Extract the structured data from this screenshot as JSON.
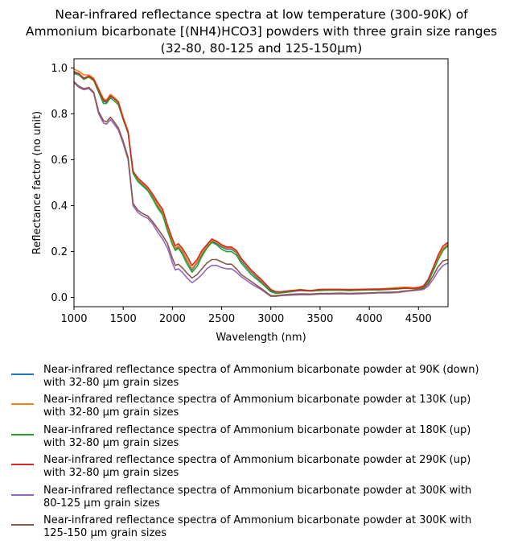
{
  "chart_data": {
    "type": "line",
    "title": "Near-infrared reflectance spectra at low temperature (300-90K) of\nAmmonium bicarbonate [(NH4)HCO3] powders with three grain size ranges\n(32-80, 80-125 and 125-150µm)",
    "xlabel": "Wavelength (nm)",
    "ylabel": "Reflectance factor (no unit)",
    "xlim": [
      1000,
      4800
    ],
    "ylim": [
      -0.04,
      1.04
    ],
    "xticks": [
      "1000",
      "1500",
      "2000",
      "2500",
      "3000",
      "3500",
      "4000",
      "4500"
    ],
    "yticks": [
      "0.0",
      "0.2",
      "0.4",
      "0.6",
      "0.8",
      "1.0"
    ],
    "grid": false,
    "legend_position": "below",
    "series": [
      {
        "name": "Near-infrared reflectance spectra of Ammonium bicarbonate powder at 90K (down)\nwith 32-80 µm grain sizes",
        "color": "#1f77b4",
        "x": [
          1000,
          1050,
          1100,
          1150,
          1200,
          1250,
          1300,
          1330,
          1370,
          1400,
          1450,
          1500,
          1550,
          1600,
          1650,
          1700,
          1750,
          1800,
          1850,
          1900,
          1950,
          2000,
          2030,
          2060,
          2100,
          2150,
          2200,
          2250,
          2300,
          2350,
          2400,
          2450,
          2500,
          2550,
          2600,
          2650,
          2700,
          2800,
          2900,
          3000,
          3050,
          3100,
          3200,
          3300,
          3400,
          3500,
          3600,
          3700,
          3800,
          3900,
          4000,
          4100,
          4200,
          4300,
          4350,
          4400,
          4450,
          4500,
          4550,
          4600,
          4650,
          4700,
          4750,
          4800
        ],
        "y": [
          0.985,
          0.975,
          0.955,
          0.965,
          0.95,
          0.9,
          0.855,
          0.85,
          0.875,
          0.87,
          0.85,
          0.78,
          0.72,
          0.545,
          0.51,
          0.49,
          0.47,
          0.44,
          0.4,
          0.37,
          0.3,
          0.24,
          0.21,
          0.22,
          0.2,
          0.16,
          0.12,
          0.15,
          0.19,
          0.22,
          0.245,
          0.235,
          0.22,
          0.21,
          0.21,
          0.195,
          0.16,
          0.11,
          0.07,
          0.03,
          0.02,
          0.02,
          0.025,
          0.03,
          0.028,
          0.03,
          0.032,
          0.032,
          0.03,
          0.032,
          0.033,
          0.033,
          0.035,
          0.038,
          0.04,
          0.045,
          0.04,
          0.042,
          0.045,
          0.07,
          0.12,
          0.17,
          0.21,
          0.23
        ]
      },
      {
        "name": "Near-infrared reflectance spectra of Ammonium bicarbonate powder at 130K (up)\nwith 32-80 µm grain sizes",
        "color": "#ff7f0e",
        "x": [
          1000,
          1050,
          1100,
          1150,
          1200,
          1250,
          1300,
          1330,
          1370,
          1400,
          1450,
          1500,
          1550,
          1600,
          1650,
          1700,
          1750,
          1800,
          1850,
          1900,
          1950,
          2000,
          2030,
          2060,
          2100,
          2150,
          2200,
          2250,
          2300,
          2350,
          2400,
          2450,
          2500,
          2550,
          2600,
          2650,
          2700,
          2800,
          2900,
          3000,
          3050,
          3100,
          3200,
          3300,
          3400,
          3500,
          3600,
          3700,
          3800,
          3900,
          4000,
          4100,
          4200,
          4300,
          4350,
          4400,
          4450,
          4500,
          4550,
          4600,
          4650,
          4700,
          4750,
          4800
        ],
        "y": [
          0.995,
          0.985,
          0.97,
          0.97,
          0.955,
          0.91,
          0.865,
          0.86,
          0.885,
          0.875,
          0.855,
          0.785,
          0.725,
          0.55,
          0.515,
          0.495,
          0.475,
          0.445,
          0.405,
          0.375,
          0.305,
          0.245,
          0.215,
          0.225,
          0.205,
          0.165,
          0.125,
          0.155,
          0.195,
          0.225,
          0.25,
          0.24,
          0.225,
          0.215,
          0.215,
          0.2,
          0.165,
          0.115,
          0.075,
          0.035,
          0.025,
          0.025,
          0.03,
          0.035,
          0.03,
          0.035,
          0.036,
          0.036,
          0.035,
          0.036,
          0.037,
          0.038,
          0.04,
          0.043,
          0.045,
          0.045,
          0.042,
          0.045,
          0.05,
          0.075,
          0.125,
          0.175,
          0.215,
          0.235
        ]
      },
      {
        "name": "Near-infrared reflectance spectra of Ammonium bicarbonate powder at 180K (up)\nwith 32-80 µm grain sizes",
        "color": "#2ca02c",
        "x": [
          1000,
          1050,
          1100,
          1150,
          1200,
          1250,
          1300,
          1330,
          1370,
          1400,
          1450,
          1500,
          1550,
          1600,
          1650,
          1700,
          1750,
          1800,
          1850,
          1900,
          1950,
          2000,
          2030,
          2060,
          2100,
          2150,
          2200,
          2250,
          2300,
          2350,
          2400,
          2450,
          2500,
          2550,
          2600,
          2650,
          2700,
          2800,
          2900,
          3000,
          3050,
          3100,
          3200,
          3250,
          3300,
          3350,
          3400,
          3500,
          3600,
          3700,
          3800,
          3900,
          4000,
          4100,
          4200,
          4300,
          4350,
          4400,
          4450,
          4500,
          4550,
          4600,
          4650,
          4700,
          4750,
          4800
        ],
        "y": [
          0.975,
          0.97,
          0.95,
          0.96,
          0.945,
          0.895,
          0.845,
          0.845,
          0.87,
          0.86,
          0.84,
          0.775,
          0.715,
          0.54,
          0.505,
          0.485,
          0.465,
          0.43,
          0.39,
          0.36,
          0.29,
          0.23,
          0.205,
          0.215,
          0.19,
          0.145,
          0.11,
          0.135,
          0.18,
          0.215,
          0.24,
          0.23,
          0.21,
          0.2,
          0.2,
          0.185,
          0.15,
          0.1,
          0.065,
          0.025,
          0.018,
          0.02,
          0.025,
          0.03,
          0.035,
          0.03,
          0.028,
          0.03,
          0.032,
          0.032,
          0.03,
          0.032,
          0.033,
          0.034,
          0.035,
          0.038,
          0.04,
          0.04,
          0.038,
          0.04,
          0.045,
          0.07,
          0.115,
          0.165,
          0.205,
          0.225
        ]
      },
      {
        "name": "Near-infrared reflectance spectra of Ammonium bicarbonate powder at 290K (up)\nwith 32-80 µm grain sizes",
        "color": "#d62728",
        "x": [
          1000,
          1050,
          1100,
          1150,
          1200,
          1250,
          1300,
          1330,
          1370,
          1400,
          1450,
          1500,
          1550,
          1600,
          1650,
          1700,
          1750,
          1800,
          1850,
          1900,
          1950,
          2000,
          2030,
          2060,
          2100,
          2150,
          2200,
          2250,
          2300,
          2350,
          2400,
          2450,
          2500,
          2550,
          2600,
          2650,
          2700,
          2800,
          2900,
          3000,
          3050,
          3100,
          3200,
          3300,
          3400,
          3500,
          3600,
          3700,
          3800,
          3900,
          4000,
          4100,
          4200,
          4300,
          4350,
          4400,
          4450,
          4500,
          4550,
          4600,
          4650,
          4700,
          4750,
          4800
        ],
        "y": [
          0.98,
          0.975,
          0.955,
          0.965,
          0.95,
          0.905,
          0.86,
          0.855,
          0.88,
          0.87,
          0.85,
          0.78,
          0.72,
          0.55,
          0.52,
          0.5,
          0.48,
          0.45,
          0.415,
          0.385,
          0.315,
          0.255,
          0.225,
          0.235,
          0.215,
          0.18,
          0.14,
          0.165,
          0.205,
          0.23,
          0.255,
          0.245,
          0.23,
          0.22,
          0.22,
          0.205,
          0.17,
          0.12,
          0.08,
          0.035,
          0.025,
          0.025,
          0.03,
          0.032,
          0.03,
          0.035,
          0.035,
          0.035,
          0.034,
          0.035,
          0.036,
          0.036,
          0.038,
          0.04,
          0.042,
          0.04,
          0.04,
          0.042,
          0.05,
          0.08,
          0.13,
          0.185,
          0.225,
          0.24
        ]
      },
      {
        "name": "Near-infrared reflectance spectra of Ammonium bicarbonate powder at 300K with\n80-125 µm grain sizes",
        "color": "#9467bd",
        "x": [
          1000,
          1050,
          1100,
          1150,
          1200,
          1250,
          1300,
          1330,
          1370,
          1400,
          1450,
          1500,
          1550,
          1600,
          1650,
          1700,
          1750,
          1800,
          1850,
          1900,
          1950,
          2000,
          2030,
          2060,
          2100,
          2150,
          2200,
          2250,
          2300,
          2350,
          2400,
          2450,
          2500,
          2550,
          2600,
          2650,
          2700,
          2800,
          2900,
          3000,
          3050,
          3100,
          3200,
          3300,
          3400,
          3500,
          3600,
          3700,
          3800,
          3900,
          4000,
          4100,
          4200,
          4300,
          4350,
          4400,
          4450,
          4500,
          4550,
          4600,
          4650,
          4700,
          4750,
          4800
        ],
        "y": [
          0.935,
          0.915,
          0.905,
          0.91,
          0.89,
          0.8,
          0.76,
          0.755,
          0.775,
          0.76,
          0.73,
          0.67,
          0.6,
          0.4,
          0.37,
          0.355,
          0.345,
          0.32,
          0.285,
          0.255,
          0.215,
          0.15,
          0.12,
          0.125,
          0.11,
          0.085,
          0.065,
          0.08,
          0.1,
          0.125,
          0.14,
          0.14,
          0.13,
          0.125,
          0.125,
          0.11,
          0.09,
          0.06,
          0.035,
          0.005,
          0.005,
          0.008,
          0.01,
          0.012,
          0.012,
          0.015,
          0.015,
          0.016,
          0.015,
          0.016,
          0.018,
          0.02,
          0.02,
          0.022,
          0.025,
          0.028,
          0.03,
          0.032,
          0.035,
          0.05,
          0.08,
          0.115,
          0.14,
          0.15
        ]
      },
      {
        "name": "Near-infrared reflectance spectra of Ammonium bicarbonate powder at 300K with\n125-150 µm grain sizes",
        "color": "#8c564b",
        "x": [
          1000,
          1050,
          1100,
          1150,
          1200,
          1250,
          1300,
          1330,
          1370,
          1400,
          1450,
          1500,
          1550,
          1600,
          1650,
          1700,
          1750,
          1800,
          1850,
          1900,
          1950,
          2000,
          2030,
          2060,
          2100,
          2150,
          2200,
          2250,
          2300,
          2350,
          2400,
          2450,
          2500,
          2550,
          2600,
          2650,
          2700,
          2800,
          2900,
          3000,
          3050,
          3100,
          3200,
          3300,
          3400,
          3500,
          3600,
          3700,
          3800,
          3900,
          4000,
          4100,
          4200,
          4300,
          4350,
          4400,
          4450,
          4500,
          4550,
          4600,
          4650,
          4700,
          4750,
          4800
        ],
        "y": [
          0.94,
          0.92,
          0.91,
          0.915,
          0.895,
          0.81,
          0.77,
          0.765,
          0.785,
          0.77,
          0.74,
          0.68,
          0.61,
          0.41,
          0.38,
          0.365,
          0.355,
          0.33,
          0.3,
          0.27,
          0.235,
          0.17,
          0.14,
          0.145,
          0.13,
          0.105,
          0.085,
          0.1,
          0.125,
          0.15,
          0.165,
          0.165,
          0.155,
          0.145,
          0.145,
          0.125,
          0.1,
          0.07,
          0.04,
          0.008,
          0.008,
          0.01,
          0.014,
          0.016,
          0.015,
          0.018,
          0.018,
          0.019,
          0.018,
          0.019,
          0.02,
          0.022,
          0.023,
          0.025,
          0.028,
          0.03,
          0.032,
          0.035,
          0.04,
          0.06,
          0.095,
          0.135,
          0.16,
          0.165
        ]
      }
    ]
  }
}
